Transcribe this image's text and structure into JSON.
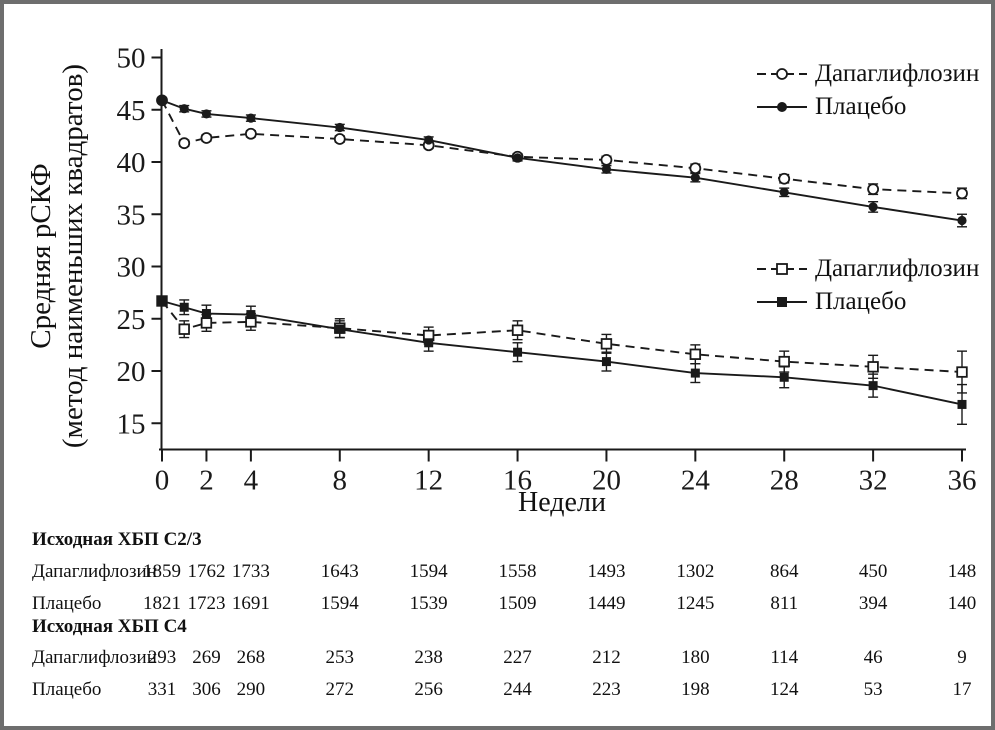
{
  "chart_data": {
    "type": "line",
    "title": "",
    "xlabel": "Недели",
    "ylabel_line1": "Средняя рСКФ",
    "ylabel_line2": "(метод наименьших квадратов)",
    "x": [
      0,
      1,
      2,
      4,
      8,
      12,
      16,
      20,
      24,
      28,
      32,
      36
    ],
    "x_ticks": [
      0,
      2,
      4,
      8,
      12,
      16,
      20,
      24,
      28,
      32,
      36
    ],
    "y_ticks": [
      15,
      20,
      25,
      30,
      35,
      40,
      45,
      50
    ],
    "xlim": [
      0,
      36
    ],
    "ylim": [
      12.5,
      51
    ],
    "grid": false,
    "legend_position": "inside-right",
    "series": [
      {
        "name": "Дапаглифлозин",
        "group": "Исходная ХБП С2/3",
        "marker": "open-circle",
        "line": "dashed",
        "values": [
          45.9,
          41.8,
          42.3,
          42.7,
          42.2,
          41.6,
          40.5,
          40.2,
          39.4,
          38.4,
          37.4,
          37.0
        ],
        "err": [
          0,
          0.3,
          0.3,
          0.3,
          0.3,
          0.3,
          0.3,
          0.35,
          0.4,
          0.4,
          0.5,
          0.5
        ]
      },
      {
        "name": "Плацебо",
        "group": "Исходная ХБП С2/3",
        "marker": "filled-circle",
        "line": "solid",
        "values": [
          45.9,
          45.1,
          44.6,
          44.2,
          43.3,
          42.1,
          40.4,
          39.3,
          38.5,
          37.1,
          35.7,
          34.4
        ],
        "err": [
          0,
          0.3,
          0.3,
          0.3,
          0.3,
          0.3,
          0.3,
          0.35,
          0.4,
          0.4,
          0.5,
          0.6
        ]
      },
      {
        "name": "Дапаглифлозин",
        "group": "Исходная ХБП С4",
        "marker": "open-square",
        "line": "dashed",
        "values": [
          26.7,
          24.0,
          24.6,
          24.7,
          24.1,
          23.4,
          23.9,
          22.6,
          21.6,
          20.9,
          20.4,
          19.9
        ],
        "err": [
          0,
          0.8,
          0.8,
          0.8,
          0.9,
          0.8,
          0.9,
          0.9,
          0.9,
          1.0,
          1.1,
          2.0
        ]
      },
      {
        "name": "Плацебо",
        "group": "Исходная ХБП С4",
        "marker": "filled-square",
        "line": "solid",
        "values": [
          26.7,
          26.1,
          25.5,
          25.4,
          24.0,
          22.7,
          21.8,
          20.9,
          19.8,
          19.4,
          18.6,
          16.8
        ],
        "err": [
          0,
          0.7,
          0.8,
          0.8,
          0.8,
          0.8,
          0.9,
          0.9,
          0.9,
          1.0,
          1.1,
          1.9
        ]
      }
    ]
  },
  "risk_table": {
    "week_columns": [
      0,
      2,
      4,
      8,
      12,
      16,
      20,
      24,
      28,
      32,
      36
    ],
    "groups": [
      {
        "header": "Исходная ХБП С2/3",
        "rows": [
          {
            "label": "Дапаглифлозин",
            "counts": [
              1859,
              1762,
              1733,
              1643,
              1594,
              1558,
              1493,
              1302,
              864,
              450,
              148
            ]
          },
          {
            "label": "Плацебо",
            "counts": [
              1821,
              1723,
              1691,
              1594,
              1539,
              1509,
              1449,
              1245,
              811,
              394,
              140
            ]
          }
        ]
      },
      {
        "header": "Исходная ХБП С4",
        "rows": [
          {
            "label": "Дапаглифлозин",
            "counts": [
              293,
              269,
              268,
              253,
              238,
              227,
              212,
              180,
              114,
              46,
              9
            ]
          },
          {
            "label": "Плацебо",
            "counts": [
              331,
              306,
              290,
              272,
              256,
              244,
              223,
              198,
              124,
              53,
              17
            ]
          }
        ]
      }
    ]
  },
  "colors": {
    "line": "#1a1a1a",
    "text": "#111111",
    "frame": "#6e6e6e",
    "background": "#ffffff"
  }
}
